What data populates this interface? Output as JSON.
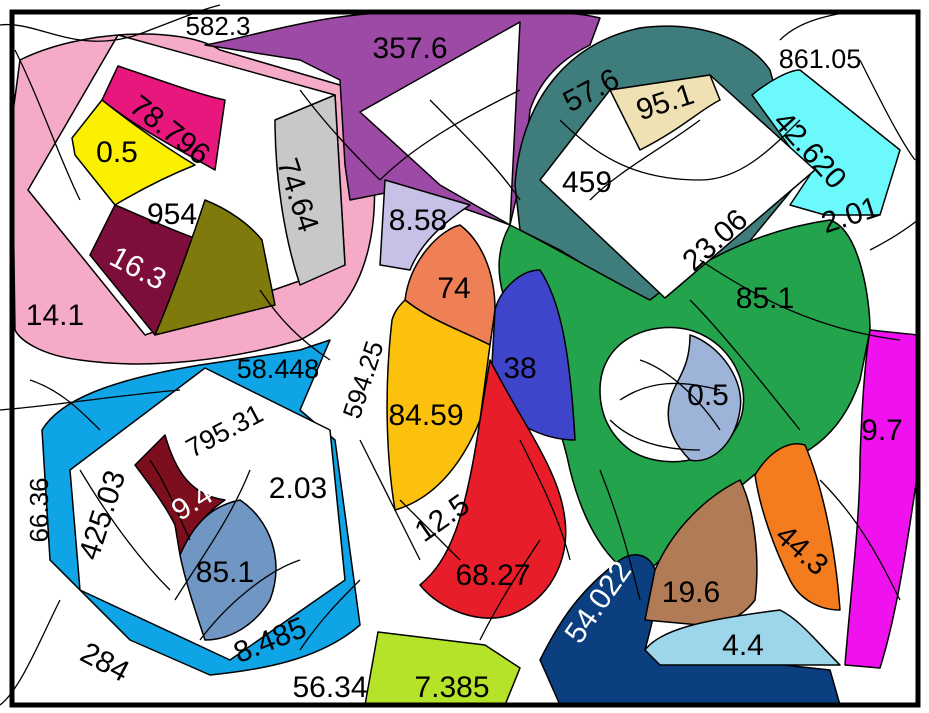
{
  "colors": {
    "pink": "#f5abc8",
    "purple": "#9c4aa6",
    "magenta_pink": "#e8177d",
    "yellow": "#fbf000",
    "maroon": "#7d0e3c",
    "olive": "#7e7b0c",
    "gray": "#c8c8c8",
    "olive_gold": "#c8a62a",
    "teal": "#3f7d7c",
    "cream": "#efe1b4",
    "cyan": "#6cf9fb",
    "green": "#23a34b",
    "lavender": "#c7c0e7",
    "salmon": "#ef7f55",
    "blue": "#3f45cb",
    "amber": "#fbc10c",
    "red": "#e71e2a",
    "sky_blue": "#0fa4e6",
    "dark_red": "#7d0e1e",
    "steel_blue": "#7096c4",
    "light_steel": "#9db4d8",
    "lime": "#b5e32a",
    "navy": "#0b3f7f",
    "brown": "#b07b55",
    "orange": "#f57b1f",
    "light_blue": "#9dd6ea",
    "fuchsia": "#f011ef"
  },
  "labels": [
    {
      "id": "l-582-3",
      "text": "582.3"
    },
    {
      "id": "l-357-6",
      "text": "357.6"
    },
    {
      "id": "l-57-6",
      "text": "57.6"
    },
    {
      "id": "l-95-1",
      "text": "95.1"
    },
    {
      "id": "l-861-05",
      "text": "861.05"
    },
    {
      "id": "l-78-796",
      "text": "78.796"
    },
    {
      "id": "l-0-5-a",
      "text": "0.5"
    },
    {
      "id": "l-954",
      "text": "954"
    },
    {
      "id": "l-16-3",
      "text": "16.3"
    },
    {
      "id": "l-74-64",
      "text": "74.64"
    },
    {
      "id": "l-14-1",
      "text": "14.1"
    },
    {
      "id": "l-42-620",
      "text": "42.620"
    },
    {
      "id": "l-459",
      "text": "459"
    },
    {
      "id": "l-23-06",
      "text": "23.06"
    },
    {
      "id": "l-2-01",
      "text": "2.01"
    },
    {
      "id": "l-8-58",
      "text": "8.58"
    },
    {
      "id": "l-74",
      "text": "74"
    },
    {
      "id": "l-85-1-a",
      "text": "85.1"
    },
    {
      "id": "l-58-448",
      "text": "58.448"
    },
    {
      "id": "l-594-25",
      "text": "594.25"
    },
    {
      "id": "l-38",
      "text": "38"
    },
    {
      "id": "l-0-5-b",
      "text": "0.5"
    },
    {
      "id": "l-84-59",
      "text": "84.59"
    },
    {
      "id": "l-795-31",
      "text": "795.31"
    },
    {
      "id": "l-9-7",
      "text": "9.7"
    },
    {
      "id": "l-66-36",
      "text": "66.36"
    },
    {
      "id": "l-425-03",
      "text": "425.03"
    },
    {
      "id": "l-2-03",
      "text": "2.03"
    },
    {
      "id": "l-9-4",
      "text": "9.4"
    },
    {
      "id": "l-12-5",
      "text": "12.5"
    },
    {
      "id": "l-85-1-b",
      "text": "85.1"
    },
    {
      "id": "l-68-27",
      "text": "68.27"
    },
    {
      "id": "l-44-3",
      "text": "44.3"
    },
    {
      "id": "l-54-022",
      "text": "54.022"
    },
    {
      "id": "l-19-6",
      "text": "19.6"
    },
    {
      "id": "l-8-485",
      "text": "8.485"
    },
    {
      "id": "l-4-4",
      "text": "4.4"
    },
    {
      "id": "l-284",
      "text": "284"
    },
    {
      "id": "l-56-34",
      "text": "56.34"
    },
    {
      "id": "l-7-385",
      "text": "7.385"
    }
  ]
}
